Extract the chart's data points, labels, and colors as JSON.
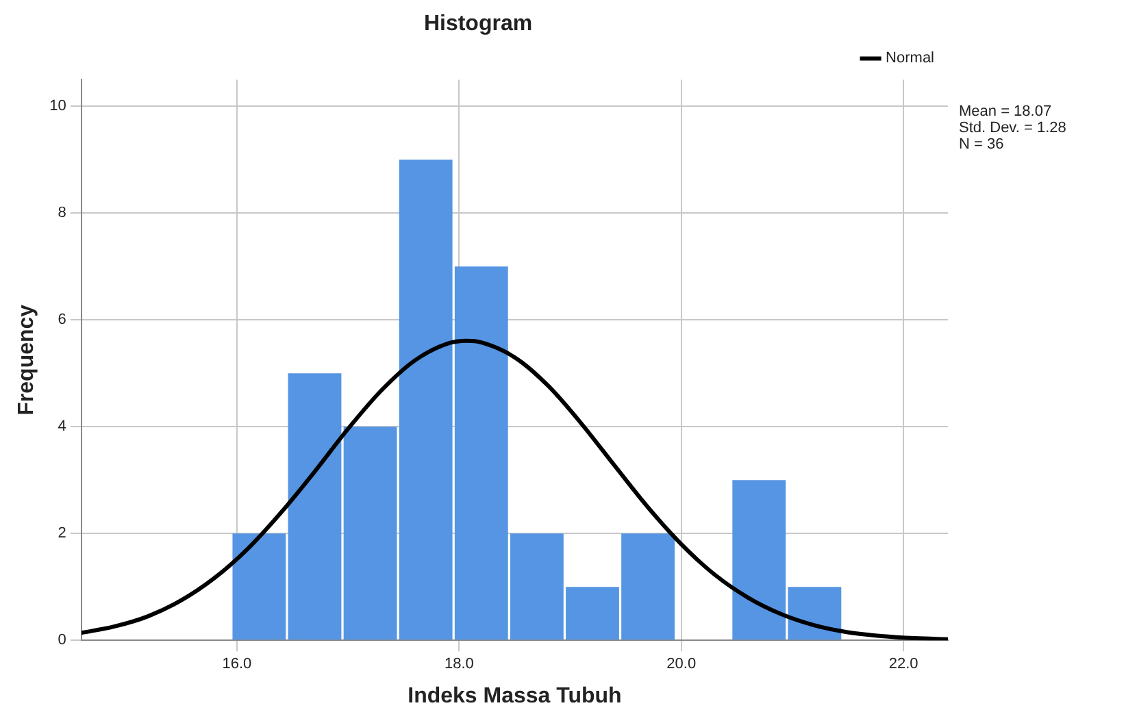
{
  "chart_data": {
    "type": "histogram",
    "title": "Histogram",
    "xlabel": "Indeks Massa Tubuh",
    "ylabel": "Frequency",
    "bins": [
      15.95,
      16.45,
      16.95,
      17.45,
      17.95,
      18.45,
      18.95,
      19.45,
      19.95,
      20.45,
      20.95,
      21.45
    ],
    "values": [
      2,
      5,
      4,
      9,
      7,
      2,
      1,
      2,
      0,
      3,
      1
    ],
    "color": "#5695e3",
    "series": [
      {
        "type": "line",
        "name": "Normal",
        "color": "#000000",
        "x": [
          14.6,
          14.9,
          15.2,
          15.5,
          15.8,
          16.1,
          16.4,
          16.7,
          17.0,
          17.3,
          17.6,
          17.9,
          18.07,
          18.2,
          18.5,
          18.8,
          19.1,
          19.4,
          19.7,
          20.0,
          20.3,
          20.6,
          20.9,
          21.2,
          21.5,
          21.8,
          22.1,
          22.4
        ],
        "values": [
          0.14,
          0.26,
          0.45,
          0.75,
          1.17,
          1.72,
          2.4,
          3.16,
          3.96,
          4.68,
          5.24,
          5.56,
          5.61,
          5.58,
          5.3,
          4.77,
          4.06,
          3.27,
          2.49,
          1.8,
          1.23,
          0.8,
          0.49,
          0.28,
          0.15,
          0.08,
          0.04,
          0.02
        ]
      }
    ],
    "xlim": [
      14.6,
      22.4
    ],
    "xticks": [
      {
        "value": 16,
        "label": "16.0"
      },
      {
        "value": 18,
        "label": "18.0"
      },
      {
        "value": 20,
        "label": "20.0"
      },
      {
        "value": 22,
        "label": "22.0"
      }
    ],
    "ylim": [
      0,
      10.5
    ],
    "yticks": [
      0,
      2,
      4,
      6,
      8,
      10
    ],
    "grid": true,
    "legend": "top right",
    "marker": "none",
    "annotations": [
      "Mean = 18.07",
      "Std. Dev. = 1.28",
      "N = 36"
    ]
  }
}
